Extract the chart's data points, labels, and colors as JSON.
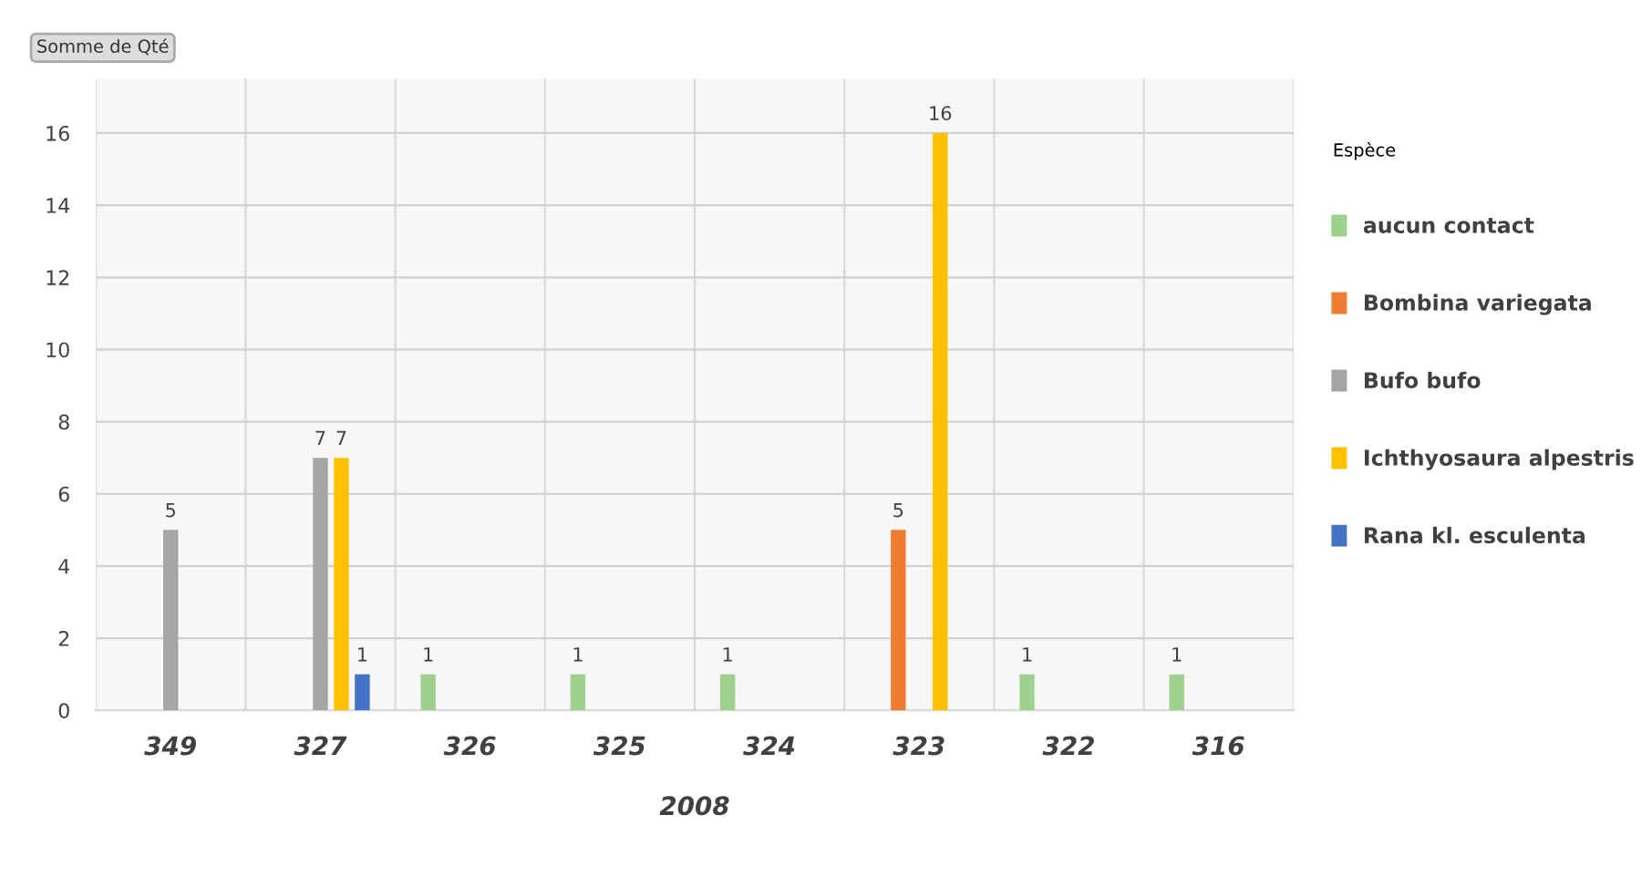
{
  "chart_data": {
    "type": "bar",
    "categories": [
      "349",
      "327",
      "326",
      "325",
      "324",
      "323",
      "322",
      "316"
    ],
    "xlabel": "2008",
    "legend_title": "Espèce",
    "annotations": [
      "Somme de Qté"
    ],
    "series": [
      {
        "name": "aucun contact",
        "color": "#9fd18e",
        "values": [
          null,
          null,
          1,
          1,
          1,
          null,
          1,
          1
        ]
      },
      {
        "name": "Bombina variegata",
        "color": "#ed7d31",
        "values": [
          null,
          null,
          null,
          null,
          null,
          5,
          null,
          null
        ]
      },
      {
        "name": "Bufo bufo",
        "color": "#a5a5a5",
        "values": [
          5,
          7,
          null,
          null,
          null,
          null,
          null,
          null
        ]
      },
      {
        "name": "Ichthyosaura alpestris",
        "color": "#ffc000",
        "values": [
          null,
          7,
          null,
          null,
          null,
          16,
          null,
          null
        ]
      },
      {
        "name": "Rana kl. esculenta",
        "color": "#4472c4",
        "values": [
          null,
          1,
          null,
          null,
          null,
          null,
          null,
          null
        ]
      }
    ],
    "ylim": [
      0,
      17.5
    ],
    "yticks": [
      0,
      2,
      4,
      6,
      8,
      10,
      12,
      14,
      16
    ],
    "grid": true,
    "legend": "right",
    "data_labels": true
  }
}
